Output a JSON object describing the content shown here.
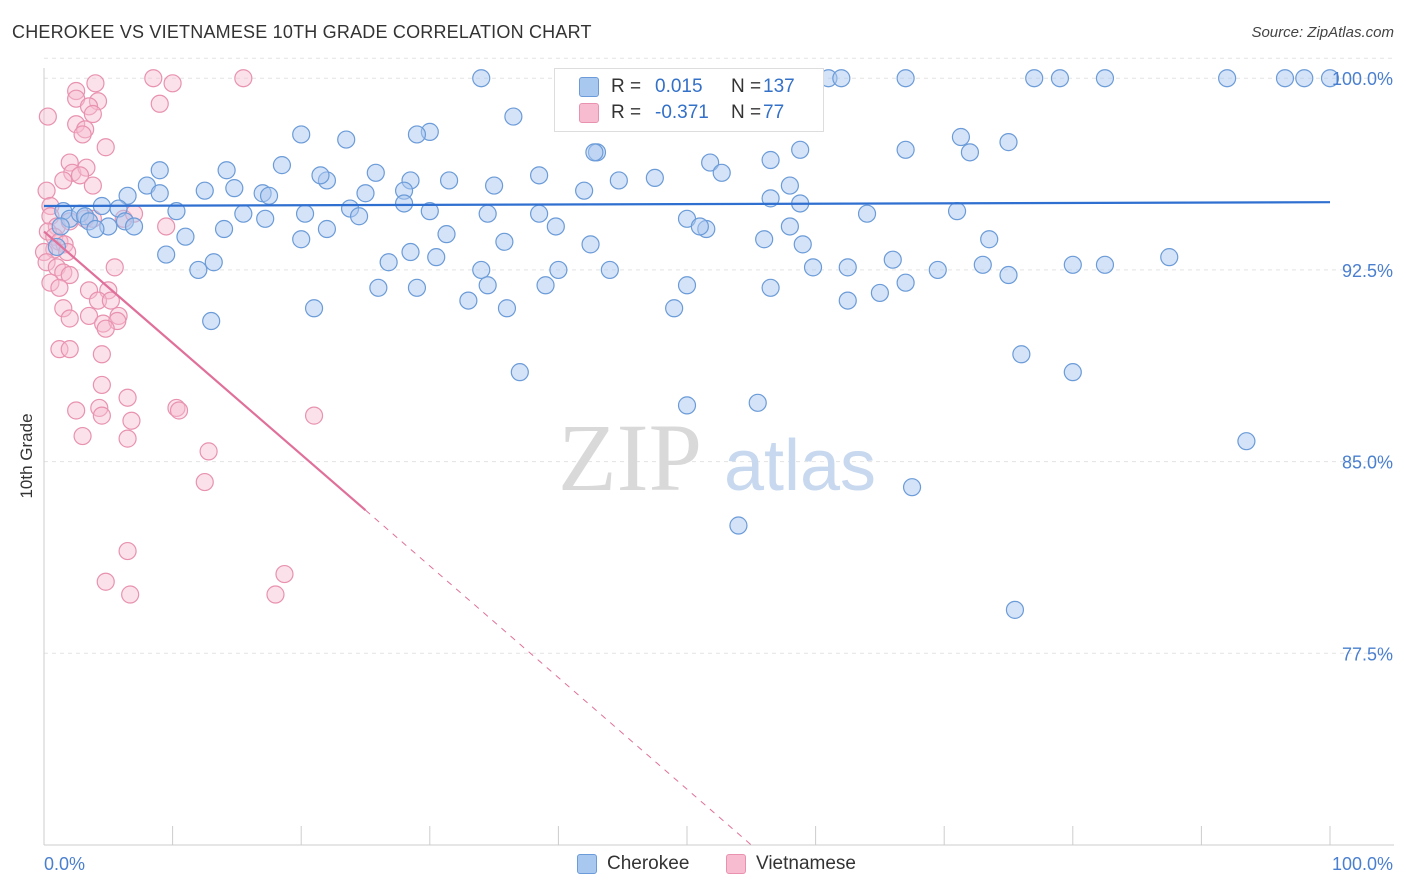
{
  "title": "CHEROKEE VS VIETNAMESE 10TH GRADE CORRELATION CHART",
  "source": "Source: ZipAtlas.com",
  "watermark": {
    "zip": "ZIP",
    "atlas": "atlas"
  },
  "legend": {
    "r_label": "R =",
    "n_label": "N =",
    "cherokee": {
      "r": "0.015",
      "n": "137"
    },
    "vietnamese": {
      "r": "-0.371",
      "n": "77"
    }
  },
  "colors": {
    "cherokee_fill": "#a9c8f0",
    "cherokee_stroke": "#6b9bd8",
    "cherokee_line": "#2f6fd0",
    "vietnamese_fill": "#f7bcd0",
    "vietnamese_stroke": "#e892b0",
    "vietnamese_line": "#e0709a",
    "tick_label": "#4a7fcf",
    "grid": "#e3e3e3"
  },
  "chart_data": {
    "type": "scatter",
    "title": "CHEROKEE VS VIETNAMESE 10TH GRADE CORRELATION CHART",
    "xlabel": "",
    "ylabel": "10th Grade",
    "xlim": [
      0,
      100
    ],
    "ylim": [
      70.0,
      100.4
    ],
    "x_tick_labels": [
      "0.0%",
      "100.0%"
    ],
    "y_ticks": [
      100.0,
      92.5,
      85.0,
      77.5
    ],
    "y_tick_labels": [
      "100.0%",
      "92.5%",
      "85.0%",
      "77.5%"
    ],
    "grid": true,
    "legend_position": "bottom",
    "series": [
      {
        "name": "Cherokee",
        "points": [
          [
            34.0,
            100.0
          ],
          [
            42.0,
            100.0
          ],
          [
            45.5,
            100.0
          ],
          [
            49.5,
            100.0
          ],
          [
            61.0,
            100.0
          ],
          [
            62.0,
            100.0
          ],
          [
            67.0,
            100.0
          ],
          [
            77.0,
            100.0
          ],
          [
            79.0,
            100.0
          ],
          [
            82.5,
            100.0
          ],
          [
            92.0,
            100.0
          ],
          [
            96.5,
            100.0
          ],
          [
            98.0,
            100.0
          ],
          [
            100.0,
            100.0
          ],
          [
            36.5,
            98.5
          ],
          [
            30.0,
            97.9
          ],
          [
            29.0,
            97.8
          ],
          [
            20.0,
            97.8
          ],
          [
            23.5,
            97.6
          ],
          [
            71.3,
            97.7
          ],
          [
            75.0,
            97.5
          ],
          [
            72.0,
            97.1
          ],
          [
            67.0,
            97.2
          ],
          [
            58.8,
            97.2
          ],
          [
            43.0,
            97.1
          ],
          [
            9.0,
            96.4
          ],
          [
            14.2,
            96.4
          ],
          [
            18.5,
            96.6
          ],
          [
            22.0,
            96.0
          ],
          [
            25.8,
            96.3
          ],
          [
            21.5,
            96.2
          ],
          [
            28.5,
            96.0
          ],
          [
            56.5,
            96.8
          ],
          [
            51.8,
            96.7
          ],
          [
            47.5,
            96.1
          ],
          [
            38.5,
            96.2
          ],
          [
            52.7,
            96.3
          ],
          [
            44.7,
            96.0
          ],
          [
            6.5,
            95.4
          ],
          [
            8.0,
            95.8
          ],
          [
            9.0,
            95.5
          ],
          [
            12.5,
            95.6
          ],
          [
            14.8,
            95.7
          ],
          [
            17.0,
            95.5
          ],
          [
            17.5,
            95.4
          ],
          [
            25.0,
            95.5
          ],
          [
            28.0,
            95.6
          ],
          [
            31.5,
            96.0
          ],
          [
            35.0,
            95.8
          ],
          [
            42.0,
            95.6
          ],
          [
            58.8,
            95.1
          ],
          [
            56.5,
            95.3
          ],
          [
            1.5,
            94.8
          ],
          [
            2.0,
            94.5
          ],
          [
            2.8,
            94.7
          ],
          [
            3.2,
            94.6
          ],
          [
            4.5,
            95.0
          ],
          [
            5.8,
            94.9
          ],
          [
            6.3,
            94.4
          ],
          [
            5.0,
            94.2
          ],
          [
            10.3,
            94.8
          ],
          [
            15.5,
            94.7
          ],
          [
            17.2,
            94.5
          ],
          [
            20.3,
            94.7
          ],
          [
            23.8,
            94.9
          ],
          [
            24.5,
            94.6
          ],
          [
            28.0,
            95.1
          ],
          [
            30.0,
            94.8
          ],
          [
            34.5,
            94.7
          ],
          [
            38.5,
            94.7
          ],
          [
            50.0,
            94.5
          ],
          [
            64.0,
            94.7
          ],
          [
            71.0,
            94.8
          ],
          [
            1.0,
            93.4
          ],
          [
            1.3,
            94.2
          ],
          [
            3.5,
            94.4
          ],
          [
            4.0,
            94.1
          ],
          [
            7.0,
            94.2
          ],
          [
            11.0,
            93.8
          ],
          [
            14.0,
            94.1
          ],
          [
            20.0,
            93.7
          ],
          [
            22.0,
            94.1
          ],
          [
            31.3,
            93.9
          ],
          [
            35.8,
            93.6
          ],
          [
            39.8,
            94.2
          ],
          [
            42.5,
            93.5
          ],
          [
            51.5,
            94.1
          ],
          [
            56.0,
            93.7
          ],
          [
            58.0,
            94.2
          ],
          [
            59.0,
            93.5
          ],
          [
            73.5,
            93.7
          ],
          [
            87.5,
            93.0
          ],
          [
            9.5,
            93.1
          ],
          [
            12.0,
            92.5
          ],
          [
            13.2,
            92.8
          ],
          [
            26.8,
            92.8
          ],
          [
            28.5,
            93.2
          ],
          [
            30.5,
            93.0
          ],
          [
            34.0,
            92.5
          ],
          [
            44.0,
            92.5
          ],
          [
            59.8,
            92.6
          ],
          [
            62.5,
            92.6
          ],
          [
            66.0,
            92.9
          ],
          [
            69.5,
            92.5
          ],
          [
            73.0,
            92.7
          ],
          [
            75.0,
            92.3
          ],
          [
            80.0,
            92.7
          ],
          [
            82.5,
            92.7
          ],
          [
            26.0,
            91.8
          ],
          [
            29.0,
            91.8
          ],
          [
            34.5,
            91.9
          ],
          [
            39.0,
            91.9
          ],
          [
            40.0,
            92.5
          ],
          [
            50.0,
            91.9
          ],
          [
            56.5,
            91.8
          ],
          [
            65.0,
            91.6
          ],
          [
            67.0,
            92.0
          ],
          [
            13.0,
            90.5
          ],
          [
            21.0,
            91.0
          ],
          [
            33.0,
            91.3
          ],
          [
            36.0,
            91.0
          ],
          [
            49.0,
            91.0
          ],
          [
            62.5,
            91.3
          ],
          [
            76.0,
            89.2
          ],
          [
            37.0,
            88.5
          ],
          [
            80.0,
            88.5
          ],
          [
            50.0,
            87.2
          ],
          [
            55.5,
            87.3
          ],
          [
            93.5,
            85.8
          ],
          [
            67.5,
            84.0
          ],
          [
            54.0,
            82.5
          ],
          [
            75.5,
            79.2
          ],
          [
            51.0,
            94.2
          ],
          [
            58.0,
            95.8
          ],
          [
            42.8,
            97.1
          ]
        ]
      },
      {
        "name": "Vietnamese",
        "points": [
          [
            8.5,
            100.0
          ],
          [
            10.0,
            99.8
          ],
          [
            15.5,
            100.0
          ],
          [
            4.0,
            99.8
          ],
          [
            2.5,
            99.5
          ],
          [
            0.3,
            98.5
          ],
          [
            2.5,
            99.2
          ],
          [
            4.2,
            99.1
          ],
          [
            9.0,
            99.0
          ],
          [
            3.5,
            98.9
          ],
          [
            2.5,
            98.2
          ],
          [
            3.8,
            98.6
          ],
          [
            3.2,
            98.0
          ],
          [
            3.0,
            97.8
          ],
          [
            4.8,
            97.3
          ],
          [
            2.0,
            96.7
          ],
          [
            2.2,
            96.3
          ],
          [
            3.3,
            96.5
          ],
          [
            1.5,
            96.0
          ],
          [
            2.8,
            96.2
          ],
          [
            3.8,
            95.8
          ],
          [
            0.2,
            95.6
          ],
          [
            0.5,
            95.0
          ],
          [
            0.5,
            94.6
          ],
          [
            1.0,
            94.2
          ],
          [
            2.0,
            94.4
          ],
          [
            3.2,
            94.5
          ],
          [
            3.8,
            94.5
          ],
          [
            6.2,
            94.5
          ],
          [
            7.0,
            94.7
          ],
          [
            9.5,
            94.2
          ],
          [
            0.3,
            94.0
          ],
          [
            0.8,
            93.8
          ],
          [
            1.2,
            93.6
          ],
          [
            1.6,
            93.5
          ],
          [
            0.8,
            93.3
          ],
          [
            1.8,
            93.2
          ],
          [
            0.0,
            93.2
          ],
          [
            0.2,
            92.8
          ],
          [
            1.0,
            92.6
          ],
          [
            1.5,
            92.4
          ],
          [
            2.0,
            92.3
          ],
          [
            5.5,
            92.6
          ],
          [
            0.5,
            92.0
          ],
          [
            1.2,
            91.8
          ],
          [
            3.5,
            91.7
          ],
          [
            5.0,
            91.7
          ],
          [
            4.2,
            91.3
          ],
          [
            5.2,
            91.3
          ],
          [
            1.5,
            91.0
          ],
          [
            2.0,
            90.6
          ],
          [
            3.5,
            90.7
          ],
          [
            5.8,
            90.7
          ],
          [
            4.6,
            90.4
          ],
          [
            5.7,
            90.5
          ],
          [
            4.8,
            90.2
          ],
          [
            1.2,
            89.4
          ],
          [
            2.0,
            89.4
          ],
          [
            4.5,
            89.2
          ],
          [
            4.5,
            88.0
          ],
          [
            6.5,
            87.5
          ],
          [
            2.5,
            87.0
          ],
          [
            4.3,
            87.1
          ],
          [
            10.3,
            87.1
          ],
          [
            10.5,
            87.0
          ],
          [
            21.0,
            86.8
          ],
          [
            4.5,
            86.8
          ],
          [
            6.8,
            86.6
          ],
          [
            3.0,
            86.0
          ],
          [
            6.5,
            85.9
          ],
          [
            12.8,
            85.4
          ],
          [
            12.5,
            84.2
          ],
          [
            6.5,
            81.5
          ],
          [
            4.8,
            80.3
          ],
          [
            6.7,
            79.8
          ],
          [
            18.0,
            79.8
          ],
          [
            18.7,
            80.6
          ]
        ]
      }
    ],
    "trend_lines": [
      {
        "series": "Cherokee",
        "x": [
          0,
          100
        ],
        "y": [
          95.0,
          95.15
        ],
        "style": "solid"
      },
      {
        "series": "Vietnamese",
        "x": [
          0,
          25
        ],
        "y": [
          94.0,
          83.1
        ],
        "style": "solid"
      },
      {
        "series": "Vietnamese",
        "x": [
          25,
          55
        ],
        "y": [
          83.1,
          70.0
        ],
        "style": "dashed"
      }
    ]
  }
}
